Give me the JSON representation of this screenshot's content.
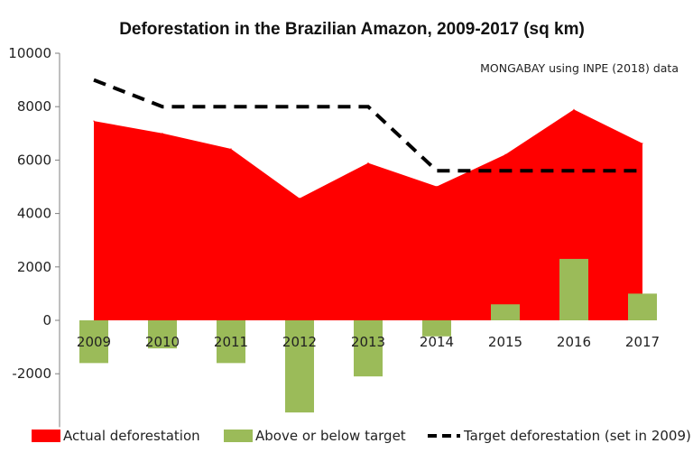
{
  "chart_data": {
    "type": "area",
    "title": "Deforestation in the Brazilian Amazon, 2009-2017 (sq km)",
    "annotation": "MONGABAY using INPE (2018) data",
    "categories": [
      "2009",
      "2010",
      "2011",
      "2012",
      "2013",
      "2014",
      "2015",
      "2016",
      "2017"
    ],
    "ylim": [
      -4000,
      10000
    ],
    "y_ticks": [
      -2000,
      0,
      2000,
      4000,
      6000,
      8000,
      10000
    ],
    "grid": false,
    "legend_position": "bottom",
    "series": [
      {
        "name": "Actual deforestation",
        "type": "area",
        "color": "#ff0000",
        "values": [
          7464,
          7000,
          6418,
          4571,
          5891,
          5012,
          6207,
          7893,
          6624
        ]
      },
      {
        "name": "Above or below target",
        "type": "bar",
        "color": "#9bbb59",
        "values": [
          -1600,
          -1050,
          -1600,
          -3450,
          -2100,
          -600,
          600,
          2300,
          1000
        ]
      },
      {
        "name": "Target deforestation (set in 2009)",
        "type": "line",
        "style": "dashed",
        "color": "#000000",
        "values": [
          9000,
          8000,
          8000,
          8000,
          8000,
          5600,
          5600,
          5600,
          5600
        ]
      }
    ]
  }
}
